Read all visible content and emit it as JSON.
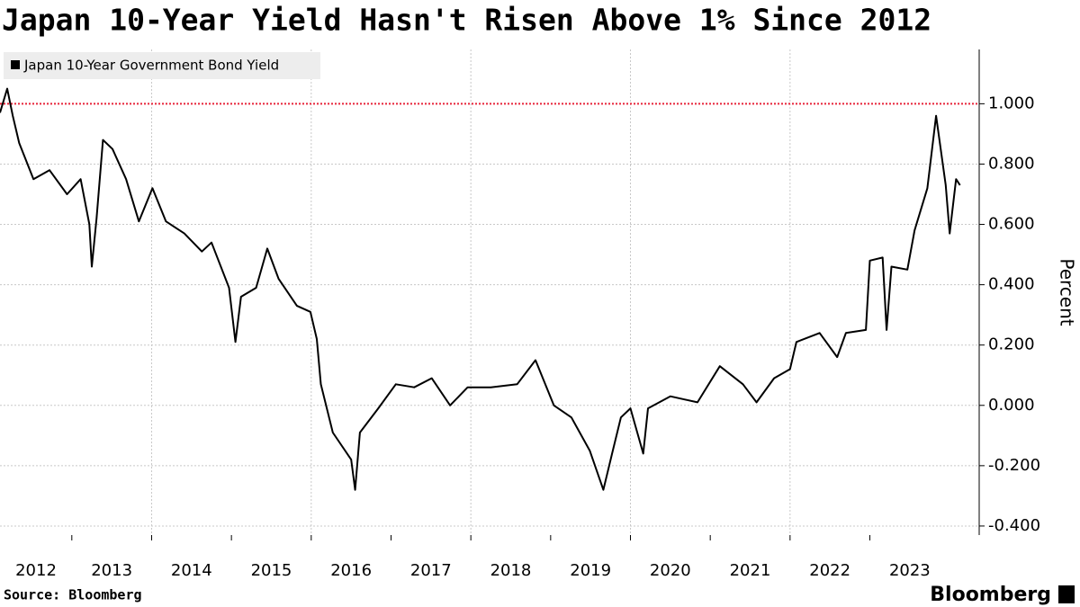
{
  "chart_data": {
    "type": "line",
    "title": "Japan 10-Year Yield Hasn't Risen Above 1% Since 2012",
    "y_label": "Percent",
    "source": "Source: Bloomberg",
    "logo": "Bloomberg",
    "series": [
      {
        "name": "Japan 10-Year Government Bond Yield",
        "color": "#000000",
        "x": [
          2012.1,
          2012.19,
          2012.26,
          2012.34,
          2012.52,
          2012.72,
          2012.94,
          2013.11,
          2013.22,
          2013.25,
          2013.31,
          2013.39,
          2013.51,
          2013.68,
          2013.84,
          2014.01,
          2014.18,
          2014.41,
          2014.63,
          2014.75,
          2014.97,
          2015.05,
          2015.12,
          2015.31,
          2015.45,
          2015.59,
          2015.82,
          2015.99,
          2016.07,
          2016.12,
          2016.27,
          2016.5,
          2016.55,
          2016.61,
          2016.84,
          2017.06,
          2017.29,
          2017.51,
          2017.74,
          2017.96,
          2018.25,
          2018.58,
          2018.81,
          2019.04,
          2019.26,
          2019.49,
          2019.66,
          2019.77,
          2019.88,
          2020.0,
          2020.16,
          2020.22,
          2020.5,
          2020.84,
          2021.12,
          2021.41,
          2021.58,
          2021.8,
          2022.0,
          2022.08,
          2022.37,
          2022.59,
          2022.7,
          2022.95,
          2023.0,
          2023.16,
          2023.21,
          2023.27,
          2023.47,
          2023.56,
          2023.72,
          2023.83,
          2023.95,
          2024.0,
          2024.08,
          2024.13
        ],
        "values": [
          0.97,
          1.05,
          0.96,
          0.87,
          0.75,
          0.78,
          0.7,
          0.75,
          0.6,
          0.46,
          0.62,
          0.88,
          0.85,
          0.75,
          0.61,
          0.72,
          0.61,
          0.57,
          0.51,
          0.54,
          0.39,
          0.21,
          0.36,
          0.39,
          0.52,
          0.42,
          0.33,
          0.31,
          0.22,
          0.07,
          -0.09,
          -0.18,
          -0.28,
          -0.09,
          -0.01,
          0.07,
          0.06,
          0.09,
          0.0,
          0.06,
          0.06,
          0.07,
          0.15,
          0.0,
          -0.04,
          -0.15,
          -0.28,
          -0.16,
          -0.04,
          -0.01,
          -0.16,
          -0.01,
          0.03,
          0.01,
          0.13,
          0.07,
          0.01,
          0.09,
          0.12,
          0.21,
          0.24,
          0.16,
          0.24,
          0.25,
          0.48,
          0.49,
          0.25,
          0.46,
          0.45,
          0.58,
          0.72,
          0.96,
          0.73,
          0.57,
          0.75,
          0.73
        ]
      }
    ],
    "reference_line": {
      "value": 1,
      "color": "#e8253a"
    },
    "xlim": [
      2012.1,
      2024.37
    ],
    "xticks": [
      {
        "value": 2012,
        "label": "2012"
      },
      {
        "value": 2013,
        "label": "2013"
      },
      {
        "value": 2014,
        "label": "2014"
      },
      {
        "value": 2015,
        "label": "2015"
      },
      {
        "value": 2016,
        "label": "2016"
      },
      {
        "value": 2017,
        "label": "2017"
      },
      {
        "value": 2018,
        "label": "2018"
      },
      {
        "value": 2019,
        "label": "2019"
      },
      {
        "value": 2020,
        "label": "2020"
      },
      {
        "value": 2021,
        "label": "2021"
      },
      {
        "value": 2022,
        "label": "2022"
      },
      {
        "value": 2023,
        "label": "2023"
      }
    ],
    "ylim": [
      -0.43,
      1.18
    ],
    "yticks": [
      {
        "value": -0.4,
        "label": "-0.400"
      },
      {
        "value": -0.2,
        "label": "-0.200"
      },
      {
        "value": 0,
        "label": "0.000"
      },
      {
        "value": 0.2,
        "label": "0.200"
      },
      {
        "value": 0.4,
        "label": "0.400"
      },
      {
        "value": 0.6,
        "label": "0.600"
      },
      {
        "value": 0.8,
        "label": "0.800"
      },
      {
        "value": 1,
        "label": "1.000"
      }
    ],
    "grid": true
  }
}
